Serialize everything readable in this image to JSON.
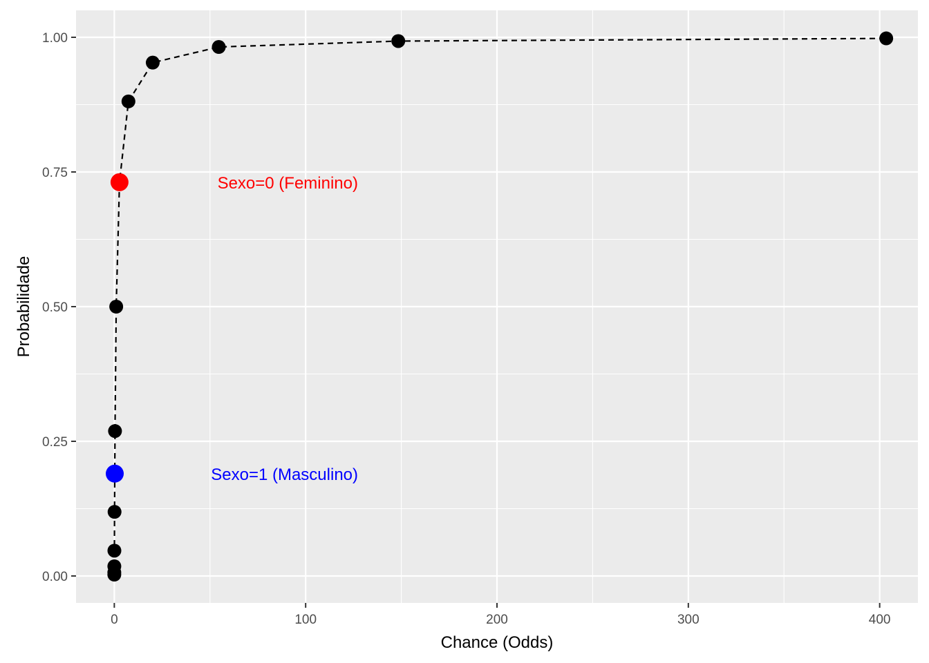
{
  "chart_data": {
    "type": "scatter",
    "xlabel": "Chance (Odds)",
    "ylabel": "Probabilidade",
    "xlim": [
      -20,
      420
    ],
    "ylim": [
      -0.05,
      1.05
    ],
    "x_ticks": [
      0,
      100,
      200,
      300,
      400
    ],
    "x_tick_labels": [
      "0",
      "100",
      "200",
      "300",
      "400"
    ],
    "y_ticks": [
      0,
      0.25,
      0.5,
      0.75,
      1.0
    ],
    "y_tick_labels": [
      "0.00",
      "0.25",
      "0.50",
      "0.75",
      "1.00"
    ],
    "grid": true,
    "panel_background": "#ebebeb",
    "line_color": "#000000",
    "line_style": "dashed",
    "series": [
      {
        "x": [
          0.0025,
          0.0067,
          0.0183,
          0.0498,
          0.1353,
          0.3679,
          1.0,
          2.7183,
          7.3891,
          20.0855,
          54.5982,
          148.4132,
          403.4288
        ],
        "y": [
          0.0025,
          0.0067,
          0.018,
          0.047,
          0.119,
          0.269,
          0.5,
          0.731,
          0.881,
          0.953,
          0.982,
          0.993,
          0.998
        ],
        "color": "#000000"
      }
    ],
    "highlights": [
      {
        "x": 2.7183,
        "y": 0.731,
        "color": "#ff0000",
        "label": "Sexo=0 (Feminino)"
      },
      {
        "x": 0.2346,
        "y": 0.19,
        "color": "#0000ff",
        "label": "Sexo=1 (Masculino)"
      }
    ]
  }
}
